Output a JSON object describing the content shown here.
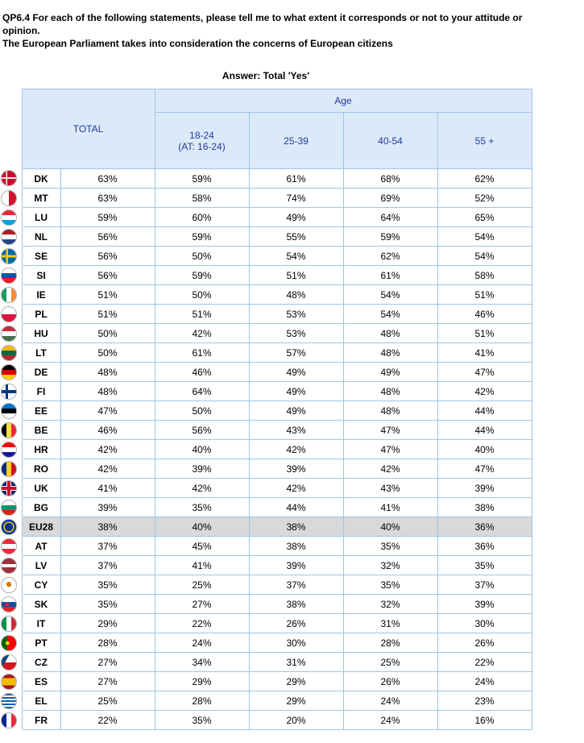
{
  "question": {
    "line1": "QP6.4 For each of the following statements, please tell me to what extent it corresponds or not to your attitude or",
    "line2": "opinion.",
    "line3": "The European Parliament takes into consideration the concerns of European citizens"
  },
  "answer_label": "Answer: Total 'Yes'",
  "headers": {
    "total": "TOTAL",
    "age": "Age",
    "age_groups": [
      {
        "line1": "18-24",
        "line2": "(AT: 16-24)"
      },
      {
        "line1": "25-39",
        "line2": ""
      },
      {
        "line1": "40-54",
        "line2": ""
      },
      {
        "line1": "55 +",
        "line2": ""
      }
    ]
  },
  "colors": {
    "header_bg": "#dce9f8",
    "header_text": "#1f3a9e",
    "grid_line": "#9ec4e8",
    "highlight_row": "#d9d9d9"
  },
  "rows": [
    {
      "country": "DK",
      "flag": "dk-flag-icon",
      "total": "63%",
      "a1": "59%",
      "a2": "61%",
      "a3": "68%",
      "a4": "62%",
      "highlight": false
    },
    {
      "country": "MT",
      "flag": "mt-flag-icon",
      "total": "63%",
      "a1": "58%",
      "a2": "74%",
      "a3": "69%",
      "a4": "52%",
      "highlight": false
    },
    {
      "country": "LU",
      "flag": "lu-flag-icon",
      "total": "59%",
      "a1": "60%",
      "a2": "49%",
      "a3": "64%",
      "a4": "65%",
      "highlight": false
    },
    {
      "country": "NL",
      "flag": "nl-flag-icon",
      "total": "56%",
      "a1": "59%",
      "a2": "55%",
      "a3": "59%",
      "a4": "54%",
      "highlight": false
    },
    {
      "country": "SE",
      "flag": "se-flag-icon",
      "total": "56%",
      "a1": "50%",
      "a2": "54%",
      "a3": "62%",
      "a4": "54%",
      "highlight": false
    },
    {
      "country": "SI",
      "flag": "si-flag-icon",
      "total": "56%",
      "a1": "59%",
      "a2": "51%",
      "a3": "61%",
      "a4": "58%",
      "highlight": false
    },
    {
      "country": "IE",
      "flag": "ie-flag-icon",
      "total": "51%",
      "a1": "50%",
      "a2": "48%",
      "a3": "54%",
      "a4": "51%",
      "highlight": false
    },
    {
      "country": "PL",
      "flag": "pl-flag-icon",
      "total": "51%",
      "a1": "51%",
      "a2": "53%",
      "a3": "54%",
      "a4": "46%",
      "highlight": false
    },
    {
      "country": "HU",
      "flag": "hu-flag-icon",
      "total": "50%",
      "a1": "42%",
      "a2": "53%",
      "a3": "48%",
      "a4": "51%",
      "highlight": false
    },
    {
      "country": "LT",
      "flag": "lt-flag-icon",
      "total": "50%",
      "a1": "61%",
      "a2": "57%",
      "a3": "48%",
      "a4": "41%",
      "highlight": false
    },
    {
      "country": "DE",
      "flag": "de-flag-icon",
      "total": "48%",
      "a1": "46%",
      "a2": "49%",
      "a3": "49%",
      "a4": "47%",
      "highlight": false
    },
    {
      "country": "FI",
      "flag": "fi-flag-icon",
      "total": "48%",
      "a1": "64%",
      "a2": "49%",
      "a3": "48%",
      "a4": "42%",
      "highlight": false
    },
    {
      "country": "EE",
      "flag": "ee-flag-icon",
      "total": "47%",
      "a1": "50%",
      "a2": "49%",
      "a3": "48%",
      "a4": "44%",
      "highlight": false
    },
    {
      "country": "BE",
      "flag": "be-flag-icon",
      "total": "46%",
      "a1": "56%",
      "a2": "43%",
      "a3": "47%",
      "a4": "44%",
      "highlight": false
    },
    {
      "country": "HR",
      "flag": "hr-flag-icon",
      "total": "42%",
      "a1": "40%",
      "a2": "42%",
      "a3": "47%",
      "a4": "40%",
      "highlight": false
    },
    {
      "country": "RO",
      "flag": "ro-flag-icon",
      "total": "42%",
      "a1": "39%",
      "a2": "39%",
      "a3": "42%",
      "a4": "47%",
      "highlight": false
    },
    {
      "country": "UK",
      "flag": "uk-flag-icon",
      "total": "41%",
      "a1": "42%",
      "a2": "42%",
      "a3": "43%",
      "a4": "39%",
      "highlight": false
    },
    {
      "country": "BG",
      "flag": "bg-flag-icon",
      "total": "39%",
      "a1": "35%",
      "a2": "44%",
      "a3": "41%",
      "a4": "38%",
      "highlight": false
    },
    {
      "country": "EU28",
      "flag": "eu-flag-icon",
      "total": "38%",
      "a1": "40%",
      "a2": "38%",
      "a3": "40%",
      "a4": "36%",
      "highlight": true
    },
    {
      "country": "AT",
      "flag": "at-flag-icon",
      "total": "37%",
      "a1": "45%",
      "a2": "38%",
      "a3": "35%",
      "a4": "36%",
      "highlight": false
    },
    {
      "country": "LV",
      "flag": "lv-flag-icon",
      "total": "37%",
      "a1": "41%",
      "a2": "39%",
      "a3": "32%",
      "a4": "35%",
      "highlight": false
    },
    {
      "country": "CY",
      "flag": "cy-flag-icon",
      "total": "35%",
      "a1": "25%",
      "a2": "37%",
      "a3": "35%",
      "a4": "37%",
      "highlight": false
    },
    {
      "country": "SK",
      "flag": "sk-flag-icon",
      "total": "35%",
      "a1": "27%",
      "a2": "38%",
      "a3": "32%",
      "a4": "39%",
      "highlight": false
    },
    {
      "country": "IT",
      "flag": "it-flag-icon",
      "total": "29%",
      "a1": "22%",
      "a2": "26%",
      "a3": "31%",
      "a4": "30%",
      "highlight": false
    },
    {
      "country": "PT",
      "flag": "pt-flag-icon",
      "total": "28%",
      "a1": "24%",
      "a2": "30%",
      "a3": "28%",
      "a4": "26%",
      "highlight": false
    },
    {
      "country": "CZ",
      "flag": "cz-flag-icon",
      "total": "27%",
      "a1": "34%",
      "a2": "31%",
      "a3": "25%",
      "a4": "22%",
      "highlight": false
    },
    {
      "country": "ES",
      "flag": "es-flag-icon",
      "total": "27%",
      "a1": "29%",
      "a2": "29%",
      "a3": "26%",
      "a4": "24%",
      "highlight": false
    },
    {
      "country": "EL",
      "flag": "el-flag-icon",
      "total": "25%",
      "a1": "28%",
      "a2": "29%",
      "a3": "24%",
      "a4": "23%",
      "highlight": false
    },
    {
      "country": "FR",
      "flag": "fr-flag-icon",
      "total": "22%",
      "a1": "35%",
      "a2": "20%",
      "a3": "24%",
      "a4": "16%",
      "highlight": false
    }
  ]
}
